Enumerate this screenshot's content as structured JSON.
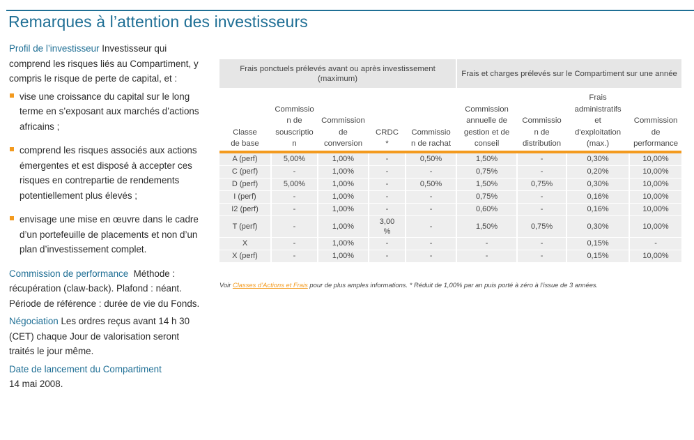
{
  "title": "Remarques à l’attention des investisseurs",
  "investor_profile": {
    "label": "Profil de l’investisseur",
    "text": "Investisseur qui comprend les risques liés au Compartiment, y compris le risque de perte de capital, et :",
    "bullets": [
      "vise une croissance du capital sur le long terme en s’exposant aux marchés d’actions africains ;",
      "comprend les risques associés aux actions émergentes et est disposé à accepter ces risques en contrepartie de rendements potentiellement plus élevés ;",
      "envisage une mise en œuvre dans le cadre d’un portefeuille de placements et non d’un plan d’investissement complet."
    ]
  },
  "performance_fee": {
    "label": "Commission de performance",
    "text": "Méthode : récupération (claw-back). Plafond : néant. Période de référence : durée de vie du Fonds."
  },
  "trading": {
    "label": "Négociation",
    "text": "Les ordres reçus avant 14 h 30 (CET) chaque Jour de valorisation seront traités le jour même."
  },
  "launch": {
    "label": "Date de lancement du Compartiment",
    "date": "14 mai 2008."
  },
  "fees_table": {
    "group_headers": [
      "Frais ponctuels prélevés avant ou après investissement (maximum)",
      "Frais et charges prélevés sur le Compartiment sur une année"
    ],
    "columns": [
      "Classe de base",
      "Commission de souscription",
      "Commission de conversion",
      "CRDC *",
      "Commission de rachat",
      "Commission annuelle de gestion et de conseil",
      "Commission de distribution",
      "Frais administratifs et d'exploitation (max.)",
      "Commission de performance"
    ],
    "rows": [
      [
        "A (perf)",
        "5,00%",
        "1,00%",
        "-",
        "0,50%",
        "1,50%",
        "-",
        "0,30%",
        "10,00%"
      ],
      [
        "C (perf)",
        "-",
        "1,00%",
        "-",
        "-",
        "0,75%",
        "-",
        "0,20%",
        "10,00%"
      ],
      [
        "D (perf)",
        "5,00%",
        "1,00%",
        "-",
        "0,50%",
        "1,50%",
        "0,75%",
        "0,30%",
        "10,00%"
      ],
      [
        "I (perf)",
        "-",
        "1,00%",
        "-",
        "-",
        "0,75%",
        "-",
        "0,16%",
        "10,00%"
      ],
      [
        "I2 (perf)",
        "-",
        "1,00%",
        "-",
        "-",
        "0,60%",
        "-",
        "0,16%",
        "10,00%"
      ],
      [
        "T (perf)",
        "-",
        "1,00%",
        "3,00%",
        "-",
        "1,50%",
        "0,75%",
        "0,30%",
        "10,00%"
      ],
      [
        "X",
        "-",
        "1,00%",
        "-",
        "-",
        "-",
        "-",
        "0,15%",
        "-"
      ],
      [
        "X (perf)",
        "-",
        "1,00%",
        "-",
        "-",
        "-",
        "-",
        "0,15%",
        "10,00%"
      ]
    ]
  },
  "footnote": {
    "prefix": "Voir",
    "link": "Classes d’Actions et Frais",
    "suffix": "pour de plus amples informations. * Réduit de 1,00% par an puis porté à zéro à l’issue de 3 années."
  }
}
